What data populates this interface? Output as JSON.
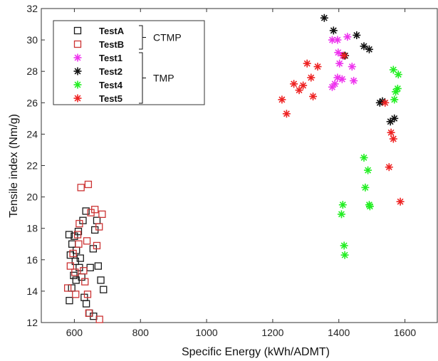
{
  "chart_data": {
    "type": "scatter",
    "title": "",
    "xlabel": "Specific Energy (kWh/ADMT)",
    "ylabel": "Tensile index (Nm/g)",
    "xlim": [
      500,
      1700
    ],
    "ylim": [
      12,
      32
    ],
    "x_ticks": [
      600,
      800,
      1000,
      1200,
      1400,
      1600
    ],
    "y_ticks": [
      12,
      14,
      16,
      18,
      20,
      22,
      24,
      26,
      28,
      30,
      32
    ],
    "grid": false,
    "legend_position": "top-left",
    "legend_groups": [
      {
        "label": "CTMP",
        "series": [
          "TestA",
          "TestB"
        ]
      },
      {
        "label": "TMP",
        "series": [
          "Test1",
          "Test2",
          "Test4",
          "Test5"
        ]
      }
    ],
    "series": [
      {
        "name": "TestA",
        "marker": "square-open",
        "color": "#1a1a1a",
        "points": [
          [
            585,
            13.4
          ],
          [
            592,
            14.2
          ],
          [
            598,
            15.0
          ],
          [
            605,
            14.7
          ],
          [
            588,
            16.3
          ],
          [
            593,
            17.0
          ],
          [
            600,
            17.5
          ],
          [
            612,
            17.8
          ],
          [
            606,
            16.6
          ],
          [
            615,
            15.5
          ],
          [
            622,
            14.9
          ],
          [
            630,
            13.6
          ],
          [
            636,
            13.2
          ],
          [
            645,
            12.6
          ],
          [
            658,
            12.4
          ],
          [
            648,
            15.5
          ],
          [
            657,
            16.7
          ],
          [
            662,
            17.9
          ],
          [
            668,
            18.5
          ],
          [
            672,
            15.6
          ],
          [
            680,
            14.7
          ],
          [
            688,
            14.1
          ],
          [
            626,
            18.5
          ],
          [
            635,
            19.1
          ],
          [
            618,
            16.1
          ],
          [
            603,
            15.9
          ],
          [
            584,
            17.6
          ]
        ]
      },
      {
        "name": "TestB",
        "marker": "square-open",
        "color": "#cc3333",
        "points": [
          [
            580,
            14.2
          ],
          [
            588,
            15.6
          ],
          [
            596,
            16.4
          ],
          [
            604,
            13.8
          ],
          [
            610,
            17.6
          ],
          [
            615,
            18.3
          ],
          [
            620,
            20.6
          ],
          [
            638,
            17.2
          ],
          [
            642,
            20.8
          ],
          [
            650,
            19.0
          ],
          [
            662,
            19.2
          ],
          [
            668,
            16.9
          ],
          [
            675,
            18.1
          ],
          [
            684,
            18.9
          ],
          [
            602,
            15.2
          ],
          [
            628,
            15.3
          ],
          [
            632,
            14.6
          ],
          [
            640,
            13.8
          ],
          [
            644,
            12.6
          ],
          [
            676,
            12.2
          ],
          [
            613,
            17.0
          ]
        ]
      },
      {
        "name": "Test1",
        "marker": "star",
        "color": "#ee33ee",
        "points": [
          [
            1380,
            30.0
          ],
          [
            1396,
            30.0
          ],
          [
            1412,
            29.0
          ],
          [
            1426,
            30.2
          ],
          [
            1402,
            28.5
          ],
          [
            1396,
            27.6
          ],
          [
            1388,
            27.2
          ],
          [
            1380,
            27.0
          ],
          [
            1410,
            27.5
          ],
          [
            1440,
            28.3
          ],
          [
            1445,
            27.4
          ],
          [
            1398,
            29.2
          ]
        ]
      },
      {
        "name": "Test2",
        "marker": "star",
        "color": "#111111",
        "points": [
          [
            1356,
            31.4
          ],
          [
            1384,
            30.6
          ],
          [
            1454,
            30.3
          ],
          [
            1476,
            29.6
          ],
          [
            1492,
            29.4
          ],
          [
            1419,
            29.0
          ],
          [
            1524,
            26.0
          ],
          [
            1532,
            26.1
          ],
          [
            1556,
            24.8
          ],
          [
            1568,
            25.0
          ]
        ]
      },
      {
        "name": "Test4",
        "marker": "star",
        "color": "#22ee22",
        "points": [
          [
            1408,
            18.9
          ],
          [
            1412,
            19.5
          ],
          [
            1416,
            16.9
          ],
          [
            1418,
            16.3
          ],
          [
            1476,
            22.5
          ],
          [
            1480,
            20.6
          ],
          [
            1488,
            21.7
          ],
          [
            1492,
            19.5
          ],
          [
            1494,
            19.4
          ],
          [
            1565,
            28.1
          ],
          [
            1580,
            27.8
          ],
          [
            1572,
            26.7
          ],
          [
            1568,
            26.2
          ],
          [
            1578,
            26.9
          ]
        ]
      },
      {
        "name": "Test5",
        "marker": "star",
        "color": "#ee2222",
        "points": [
          [
            1228,
            26.2
          ],
          [
            1242,
            25.3
          ],
          [
            1264,
            27.2
          ],
          [
            1280,
            26.8
          ],
          [
            1292,
            27.1
          ],
          [
            1304,
            28.5
          ],
          [
            1316,
            27.6
          ],
          [
            1322,
            26.4
          ],
          [
            1336,
            28.3
          ],
          [
            1416,
            29.0
          ],
          [
            1540,
            26.0
          ],
          [
            1558,
            24.1
          ],
          [
            1565,
            23.7
          ],
          [
            1552,
            21.9
          ],
          [
            1586,
            19.7
          ]
        ]
      }
    ]
  }
}
